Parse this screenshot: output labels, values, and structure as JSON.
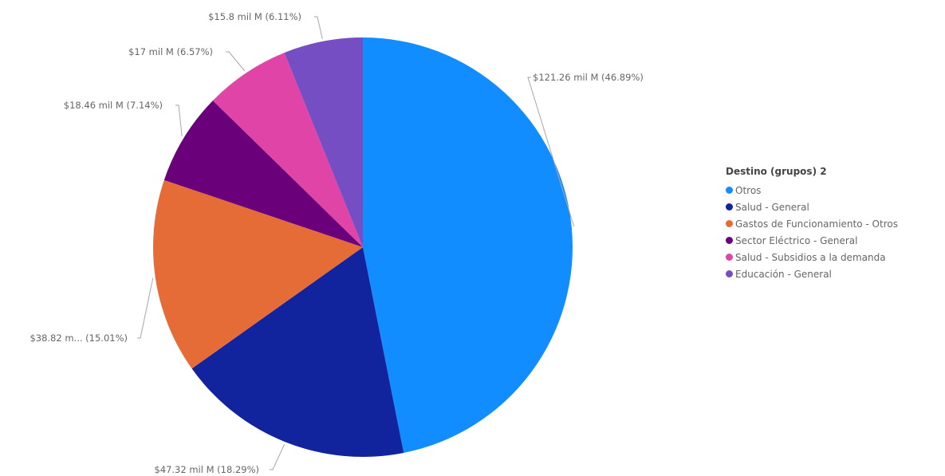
{
  "chart_data": {
    "type": "pie",
    "legend_title": "Destino (grupos) 2",
    "legend_position": "right",
    "slices": [
      {
        "name": "Otros",
        "value": 121.26,
        "percent": 46.89,
        "label": "$121.26 mil M (46.89%)",
        "color": "#118DFF"
      },
      {
        "name": "Salud - General",
        "value": 47.32,
        "percent": 18.29,
        "label": "$47.32 mil M (18.29%)",
        "color": "#12239E"
      },
      {
        "name": "Gastos de Funcionamiento - Otros",
        "value": 38.82,
        "percent": 15.01,
        "label": "$38.82 m... (15.01%)",
        "color": "#E66C37"
      },
      {
        "name": "Sector Eléctrico - General",
        "value": 18.46,
        "percent": 7.14,
        "label": "$18.46 mil M (7.14%)",
        "color": "#6B007B"
      },
      {
        "name": "Salud - Subsidios a la demanda",
        "value": 17,
        "percent": 6.57,
        "label": "$17 mil M (6.57%)",
        "color": "#E044A7"
      },
      {
        "name": "Educación - General",
        "value": 15.8,
        "percent": 6.11,
        "label": "$15.8 mil M (6.11%)",
        "color": "#744EC2"
      }
    ]
  }
}
